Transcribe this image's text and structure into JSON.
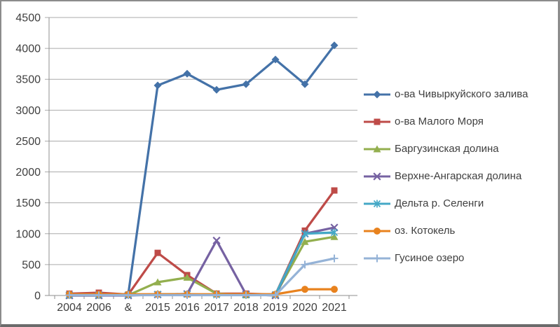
{
  "chart_data": {
    "type": "line",
    "title": "",
    "xlabel": "",
    "ylabel": "",
    "categories": [
      "2004",
      "2006",
      "&",
      "2015",
      "2016",
      "2017",
      "2018",
      "2019",
      "2020",
      "2021"
    ],
    "series": [
      {
        "name": "о-ва Чивыркуйского залива",
        "color": "#4472A8",
        "marker": "diamond",
        "values": [
          20,
          20,
          20,
          3400,
          3590,
          3330,
          3420,
          3820,
          3420,
          4050
        ]
      },
      {
        "name": "о-ва Малого Моря",
        "color": "#BE4B48",
        "marker": "square",
        "values": [
          30,
          45,
          15,
          690,
          330,
          30,
          30,
          15,
          1050,
          1700
        ]
      },
      {
        "name": "Баргузинская долина",
        "color": "#93AF4E",
        "marker": "triangle",
        "values": [
          0,
          0,
          5,
          215,
          290,
          30,
          5,
          10,
          870,
          950
        ]
      },
      {
        "name": "Верхне-Ангарская долина",
        "color": "#7662A2",
        "marker": "x",
        "values": [
          0,
          0,
          0,
          15,
          25,
          890,
          20,
          0,
          1000,
          1100
        ]
      },
      {
        "name": "Дельта р. Селенги",
        "color": "#44A8C6",
        "marker": "asterisk",
        "values": [
          10,
          10,
          10,
          20,
          20,
          10,
          10,
          15,
          1000,
          1020
        ]
      },
      {
        "name": "оз. Котокель",
        "color": "#E8821E",
        "marker": "circle",
        "values": [
          20,
          20,
          20,
          20,
          20,
          20,
          20,
          20,
          100,
          100
        ]
      },
      {
        "name": "Гусиное озеро",
        "color": "#95B3D7",
        "marker": "plus",
        "values": [
          5,
          5,
          5,
          5,
          5,
          5,
          5,
          5,
          500,
          600
        ]
      }
    ],
    "y_ticks": [
      0,
      500,
      1000,
      1500,
      2000,
      2500,
      3000,
      3500,
      4000,
      4500
    ],
    "ylim": [
      0,
      4500
    ],
    "grid": true,
    "legend_position": "right",
    "grid_color": "#ABABAB",
    "axis_color": "#8F8F8F",
    "text_color": "#3F3F3F"
  }
}
